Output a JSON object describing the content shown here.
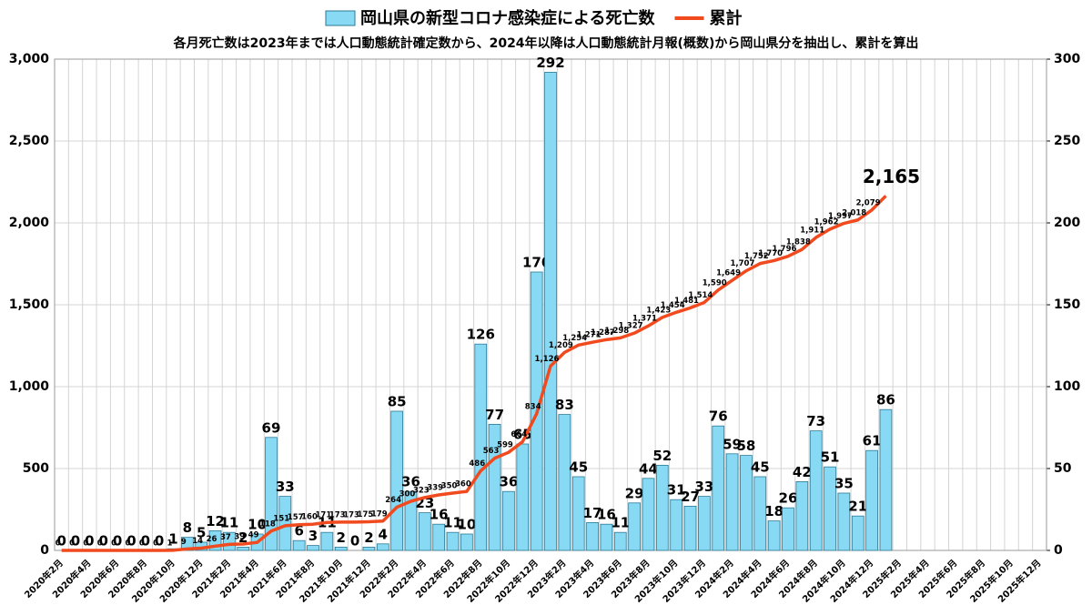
{
  "chart_data": {
    "type": "bar",
    "subtitle": "各月死亡数は2023年までは人口動態統計確定数から、2024年以降は人口動態統計月報(概数)から岡山県分を抽出し、累計を算出",
    "categories": [
      "2020年2月",
      null,
      "2020年4月",
      null,
      "2020年6月",
      null,
      "2020年8月",
      null,
      "2020年10月",
      null,
      "2020年12月",
      null,
      "2021年2月",
      null,
      "2021年4月",
      null,
      "2021年6月",
      null,
      "2021年8月",
      null,
      "2021年10月",
      null,
      "2021年12月",
      null,
      "2022年2月",
      null,
      "2022年4月",
      null,
      "2022年6月",
      null,
      "2022年8月",
      null,
      "2022年10月",
      null,
      "2022年12月",
      null,
      "2023年2月",
      null,
      "2023年4月",
      null,
      "2023年6月",
      null,
      "2023年8月",
      null,
      "2023年10月",
      null,
      "2023年12月",
      null,
      "2024年2月",
      null,
      "2024年4月",
      null,
      "2024年6月",
      null,
      "2024年8月",
      null,
      "2024年10月",
      null,
      "2024年12月",
      null,
      "2025年2月",
      null,
      "2025年4月",
      null,
      "2025年6月",
      null,
      "2025年8月",
      null,
      "2025年10月",
      null,
      "2025年12月"
    ],
    "series": [
      {
        "name": "岡山県の新型コロナ感染症による死亡数",
        "type": "bar",
        "axis": "y2",
        "color": "#88d9f3",
        "values": [
          0,
          0,
          0,
          0,
          0,
          0,
          0,
          0,
          1,
          8,
          5,
          12,
          11,
          2,
          10,
          69,
          33,
          6,
          3,
          11,
          2,
          0,
          2,
          4,
          85,
          36,
          23,
          16,
          11,
          10,
          126,
          77,
          36,
          65,
          170,
          292,
          83,
          45,
          17,
          16,
          11,
          29,
          44,
          52,
          31,
          27,
          33,
          76,
          59,
          58,
          45,
          18,
          26,
          42,
          73,
          51,
          35,
          21,
          61,
          86,
          null,
          null,
          null,
          null,
          null,
          null,
          null,
          null,
          null,
          null,
          null
        ]
      },
      {
        "name": "累計",
        "type": "line",
        "axis": "y",
        "color": "#f04a1e",
        "values": [
          0,
          0,
          0,
          0,
          0,
          0,
          0,
          0,
          1,
          9,
          14,
          26,
          37,
          39,
          49,
          118,
          151,
          157,
          160,
          171,
          173,
          173,
          175,
          179,
          264,
          300,
          323,
          339,
          350,
          360,
          486,
          563,
          599,
          664,
          834,
          1126,
          1209,
          1254,
          1271,
          1287,
          1298,
          1327,
          1371,
          1423,
          1454,
          1481,
          1514,
          1590,
          1649,
          1707,
          1752,
          1770,
          1796,
          1838,
          1911,
          1962,
          1997,
          2018,
          2079,
          2165,
          null,
          null,
          null,
          null,
          null,
          null,
          null,
          null,
          null,
          null,
          null
        ],
        "value_labels": [
          "0",
          "0",
          "0",
          "0",
          "0",
          "0",
          "0",
          "0",
          "1",
          "9",
          "14",
          "26",
          "37",
          "39",
          "49",
          "118",
          "151",
          "157",
          "160",
          "171",
          "173",
          "173",
          "175",
          "179",
          "264",
          "300",
          "323",
          "339",
          "350",
          "360",
          "486",
          "563",
          "599",
          "664",
          "834",
          "1,126",
          "1,209",
          "1,254",
          "1,271",
          "1,287",
          "1,298",
          "1,327",
          "1,371",
          "1,423",
          "1,454",
          "1,481",
          "1,514",
          "1,590",
          "1,649",
          "1,707",
          "1,752",
          "1,770",
          "1,796",
          "1,838",
          "1,911",
          "1,962",
          "1,997",
          "2,018",
          "2,079",
          "2,165",
          null,
          null,
          null,
          null,
          null,
          null,
          null,
          null,
          null,
          null,
          null
        ]
      }
    ],
    "ylim": [
      0,
      3000
    ],
    "yticks": [
      0,
      {
        "value": 500,
        "label": "500"
      },
      {
        "value": 1000,
        "label": "1,000"
      },
      {
        "value": 1500,
        "label": "1,500"
      },
      {
        "value": 2000,
        "label": "2,000"
      },
      {
        "value": 2500,
        "label": "2,500"
      },
      {
        "value": 3000,
        "label": "3,000"
      }
    ],
    "y2lim": [
      0,
      300
    ],
    "y2ticks": [
      0,
      50,
      100,
      150,
      200,
      250,
      300
    ],
    "grid": true,
    "legend": "top"
  }
}
